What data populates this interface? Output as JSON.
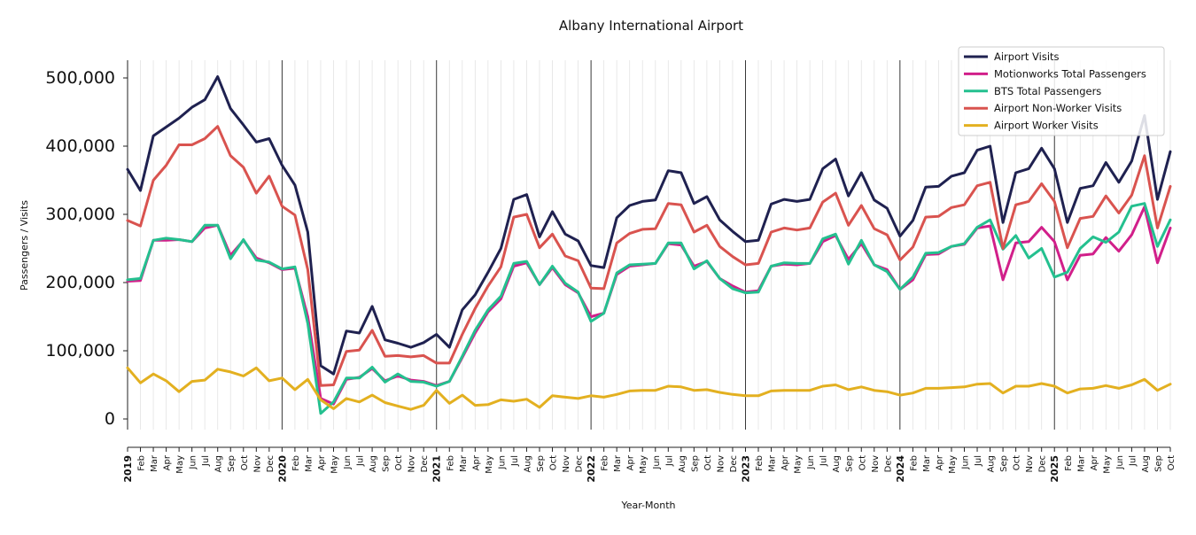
{
  "chart_data": {
    "type": "line",
    "title": "Albany International Airport",
    "xlabel": "Year-Month",
    "ylabel": "Passengers / Visits",
    "ylim": [
      -15000,
      525000
    ],
    "yticks": [
      0,
      100000,
      200000,
      300000,
      400000,
      500000
    ],
    "ytick_labels": [
      "0",
      "100,000",
      "200,000",
      "300,000",
      "400,000",
      "500,000"
    ],
    "grid": "vertical monthly lines; darker lines at January of each year",
    "legend_position": "top-right",
    "x": [
      "2019",
      "Feb",
      "Mar",
      "Apr",
      "May",
      "Jun",
      "Jul",
      "Aug",
      "Sep",
      "Oct",
      "Nov",
      "Dec",
      "2020",
      "Feb",
      "Mar",
      "Apr",
      "May",
      "Jun",
      "Jul",
      "Aug",
      "Sep",
      "Oct",
      "Nov",
      "Dec",
      "2021",
      "Feb",
      "Mar",
      "Apr",
      "May",
      "Jun",
      "Jul",
      "Aug",
      "Sep",
      "Oct",
      "Nov",
      "Dec",
      "2022",
      "Feb",
      "Mar",
      "Apr",
      "May",
      "Jun",
      "Jul",
      "Aug",
      "Sep",
      "Oct",
      "Nov",
      "Dec",
      "2023",
      "Feb",
      "Mar",
      "Apr",
      "May",
      "Jun",
      "Jul",
      "Aug",
      "Sep",
      "Oct",
      "Nov",
      "Dec",
      "2024",
      "Feb",
      "Mar",
      "Apr",
      "May",
      "Jun",
      "Jul",
      "Aug",
      "Sep",
      "Oct",
      "Nov",
      "Dec",
      "2025",
      "Feb",
      "Mar",
      "Apr",
      "May",
      "Jun",
      "Jul",
      "Aug",
      "Sep",
      "Oct"
    ],
    "series": [
      {
        "name": "Airport Visits",
        "color": "#1f2150",
        "values": [
          366000,
          335000,
          415000,
          428000,
          441000,
          457000,
          468000,
          502000,
          455000,
          431000,
          406000,
          411000,
          372000,
          343000,
          274000,
          78000,
          66000,
          129000,
          126000,
          165000,
          116000,
          111000,
          105000,
          112000,
          124000,
          105000,
          160000,
          182000,
          215000,
          250000,
          322000,
          329000,
          267000,
          304000,
          271000,
          261000,
          225000,
          222000,
          295000,
          313000,
          319000,
          321000,
          364000,
          361000,
          316000,
          326000,
          292000,
          275000,
          260000,
          262000,
          315000,
          322000,
          319000,
          322000,
          367000,
          381000,
          327000,
          361000,
          321000,
          309000,
          268000,
          291000,
          340000,
          341000,
          356000,
          361000,
          394000,
          400000,
          288000,
          361000,
          367000,
          397000,
          367000,
          288000,
          338000,
          342000,
          376000,
          347000,
          378000,
          445000,
          322000,
          392000
        ]
      },
      {
        "name": "Motionworks Total Passengers",
        "color": "#d11f8a",
        "values": [
          202000,
          203000,
          262000,
          262000,
          263000,
          260000,
          280000,
          284000,
          240000,
          262000,
          236000,
          229000,
          219000,
          221000,
          150000,
          30000,
          22000,
          58000,
          61000,
          74000,
          56000,
          63000,
          57000,
          55000,
          49000,
          55000,
          90000,
          126000,
          157000,
          176000,
          224000,
          229000,
          197000,
          222000,
          197000,
          185000,
          150000,
          155000,
          212000,
          224000,
          226000,
          228000,
          257000,
          255000,
          224000,
          231000,
          206000,
          195000,
          186000,
          188000,
          224000,
          227000,
          226000,
          228000,
          260000,
          269000,
          234000,
          257000,
          226000,
          219000,
          190000,
          204000,
          241000,
          242000,
          253000,
          256000,
          280000,
          283000,
          204000,
          258000,
          260000,
          281000,
          260000,
          204000,
          240000,
          242000,
          266000,
          246000,
          270000,
          311000,
          229000,
          280000
        ]
      },
      {
        "name": "BTS Total Passengers",
        "color": "#24c08f",
        "values": [
          204000,
          206000,
          262000,
          265000,
          263000,
          260000,
          284000,
          284000,
          235000,
          263000,
          233000,
          230000,
          220000,
          223000,
          140000,
          8000,
          25000,
          60000,
          60000,
          76000,
          54000,
          66000,
          55000,
          54000,
          48000,
          55000,
          92000,
          130000,
          160000,
          180000,
          228000,
          231000,
          197000,
          224000,
          199000,
          186000,
          143000,
          155000,
          214000,
          226000,
          227000,
          228000,
          258000,
          258000,
          220000,
          232000,
          206000,
          191000,
          185000,
          186000,
          224000,
          229000,
          228000,
          228000,
          264000,
          271000,
          227000,
          262000,
          226000,
          216000,
          190000,
          208000,
          243000,
          244000,
          253000,
          257000,
          281000,
          292000,
          249000,
          269000,
          236000,
          250000,
          208000,
          215000,
          250000,
          267000,
          259000,
          274000,
          312000,
          316000,
          253000,
          292000
        ]
      },
      {
        "name": "Airport Non-Worker Visits",
        "color": "#d9534f",
        "values": [
          291000,
          283000,
          350000,
          372000,
          402000,
          402000,
          411000,
          429000,
          386000,
          369000,
          331000,
          356000,
          312000,
          299000,
          219000,
          49000,
          50000,
          99000,
          101000,
          130000,
          92000,
          93000,
          91000,
          93000,
          82000,
          82000,
          124000,
          162000,
          195000,
          223000,
          296000,
          300000,
          251000,
          271000,
          239000,
          232000,
          192000,
          191000,
          258000,
          272000,
          278000,
          279000,
          316000,
          314000,
          274000,
          284000,
          253000,
          238000,
          226000,
          228000,
          274000,
          280000,
          277000,
          280000,
          318000,
          331000,
          284000,
          313000,
          279000,
          270000,
          233000,
          252000,
          296000,
          297000,
          310000,
          314000,
          342000,
          347000,
          250000,
          314000,
          319000,
          345000,
          319000,
          251000,
          294000,
          297000,
          327000,
          302000,
          328000,
          386000,
          280000,
          341000
        ]
      },
      {
        "name": "Airport Worker Visits",
        "color": "#e3b020",
        "values": [
          75000,
          53000,
          66000,
          56000,
          40000,
          55000,
          57000,
          73000,
          69000,
          63000,
          75000,
          56000,
          60000,
          43000,
          58000,
          28000,
          15000,
          30000,
          25000,
          35000,
          24000,
          19000,
          14000,
          20000,
          42000,
          23000,
          35000,
          20000,
          21000,
          28000,
          26000,
          29000,
          17000,
          34000,
          32000,
          30000,
          34000,
          32000,
          36000,
          41000,
          42000,
          42000,
          48000,
          47000,
          42000,
          43000,
          39000,
          36000,
          34000,
          34000,
          41000,
          42000,
          42000,
          42000,
          48000,
          50000,
          43000,
          47000,
          42000,
          40000,
          35000,
          38000,
          45000,
          45000,
          46000,
          47000,
          51000,
          52000,
          38000,
          48000,
          48000,
          52000,
          48000,
          38000,
          44000,
          45000,
          49000,
          45000,
          50000,
          58000,
          42000,
          51000
        ]
      }
    ]
  }
}
